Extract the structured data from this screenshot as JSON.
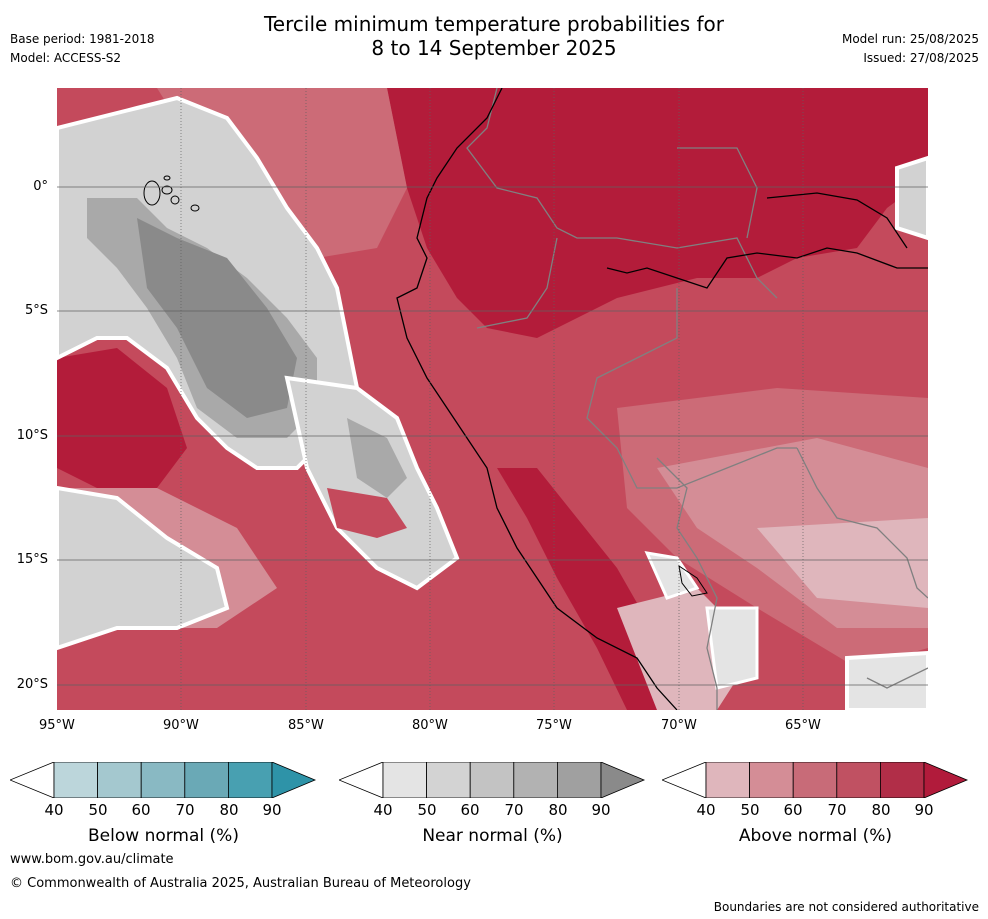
{
  "header": {
    "title_line1": "Tercile minimum temperature probabilities for",
    "title_line2": "8 to 14 September 2025",
    "base_period": "Base period: 1981-2018",
    "model": "Model: ACCESS-S2",
    "model_run": "Model run: 25/08/2025",
    "issued": "Issued: 27/08/2025"
  },
  "map": {
    "lon_labels": [
      "95°W",
      "90°W",
      "85°W",
      "80°W",
      "75°W",
      "70°W",
      "65°W"
    ],
    "lat_labels": [
      "0°",
      "5°S",
      "10°S",
      "15°S",
      "20°S"
    ],
    "colors": {
      "above90": "#b31c3a",
      "above80": "#c44a5c",
      "above70": "#cc6b77",
      "above60": "#d48d96",
      "above50": "#dfb6bc",
      "near": "#e4e4e4",
      "near50": "#d2d2d2",
      "near60": "#c2c2c2",
      "near70": "#a9a9a9",
      "near80": "#8a8a8a"
    }
  },
  "colorbars": [
    {
      "label": "Below normal (%)",
      "ticks": [
        "40",
        "50",
        "60",
        "70",
        "80",
        "90"
      ],
      "colors": [
        "#ffffff",
        "#bcd6db",
        "#a4c8cf",
        "#89b9c3",
        "#6aa9b6",
        "#48a0b1",
        "#2e93a8"
      ]
    },
    {
      "label": "Near normal (%)",
      "ticks": [
        "40",
        "50",
        "60",
        "70",
        "80",
        "90"
      ],
      "colors": [
        "#ffffff",
        "#e4e4e4",
        "#d3d3d3",
        "#c3c3c3",
        "#b2b2b2",
        "#a0a0a0",
        "#8a8a8a"
      ]
    },
    {
      "label": "Above normal (%)",
      "ticks": [
        "40",
        "50",
        "60",
        "70",
        "80",
        "90"
      ],
      "colors": [
        "#ffffff",
        "#dfb6bc",
        "#d48d96",
        "#c86b78",
        "#c05162",
        "#b12e48",
        "#b11b3b"
      ]
    }
  ],
  "footer": {
    "url": "www.bom.gov.au/climate",
    "copyright": "© Commonwealth of Australia 2025, Australian Bureau of Meteorology",
    "disclaimer": "Boundaries are not considered authoritative"
  }
}
